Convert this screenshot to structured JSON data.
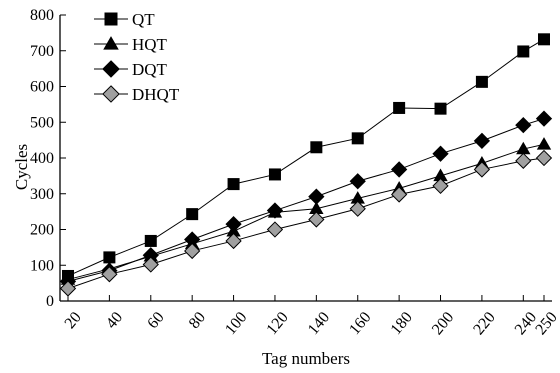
{
  "chart_data": {
    "type": "line",
    "xlabel": "Tag numbers",
    "ylabel": "Cycles",
    "x": [
      20,
      40,
      60,
      80,
      100,
      120,
      140,
      160,
      180,
      200,
      220,
      240,
      250
    ],
    "x_tick_labels": [
      "20",
      "40",
      "60",
      "80",
      "100",
      "120",
      "140",
      "160",
      "180",
      "200",
      "220",
      "240",
      "250"
    ],
    "ylim": [
      0,
      800
    ],
    "y_ticks": [
      0,
      100,
      200,
      300,
      400,
      500,
      600,
      700,
      800
    ],
    "grid": false,
    "legend_position": "top-left",
    "series": [
      {
        "name": "QT",
        "marker": "square",
        "color": "#000000",
        "values": [
          70,
          122,
          168,
          243,
          327,
          354,
          430,
          455,
          540,
          538,
          613,
          698,
          732
        ]
      },
      {
        "name": "HQT",
        "marker": "triangle",
        "color": "#000000",
        "values": [
          60,
          90,
          125,
          160,
          195,
          248,
          258,
          287,
          315,
          350,
          385,
          425,
          438
        ]
      },
      {
        "name": "DQT",
        "marker": "diamond",
        "color": "#000000",
        "values": [
          55,
          85,
          128,
          172,
          215,
          253,
          292,
          335,
          368,
          412,
          448,
          492,
          510
        ]
      },
      {
        "name": "DHQT",
        "marker": "diamond",
        "color": "#a0a0a0",
        "values": [
          35,
          75,
          102,
          140,
          168,
          200,
          228,
          258,
          298,
          322,
          368,
          392,
          400
        ]
      }
    ]
  }
}
